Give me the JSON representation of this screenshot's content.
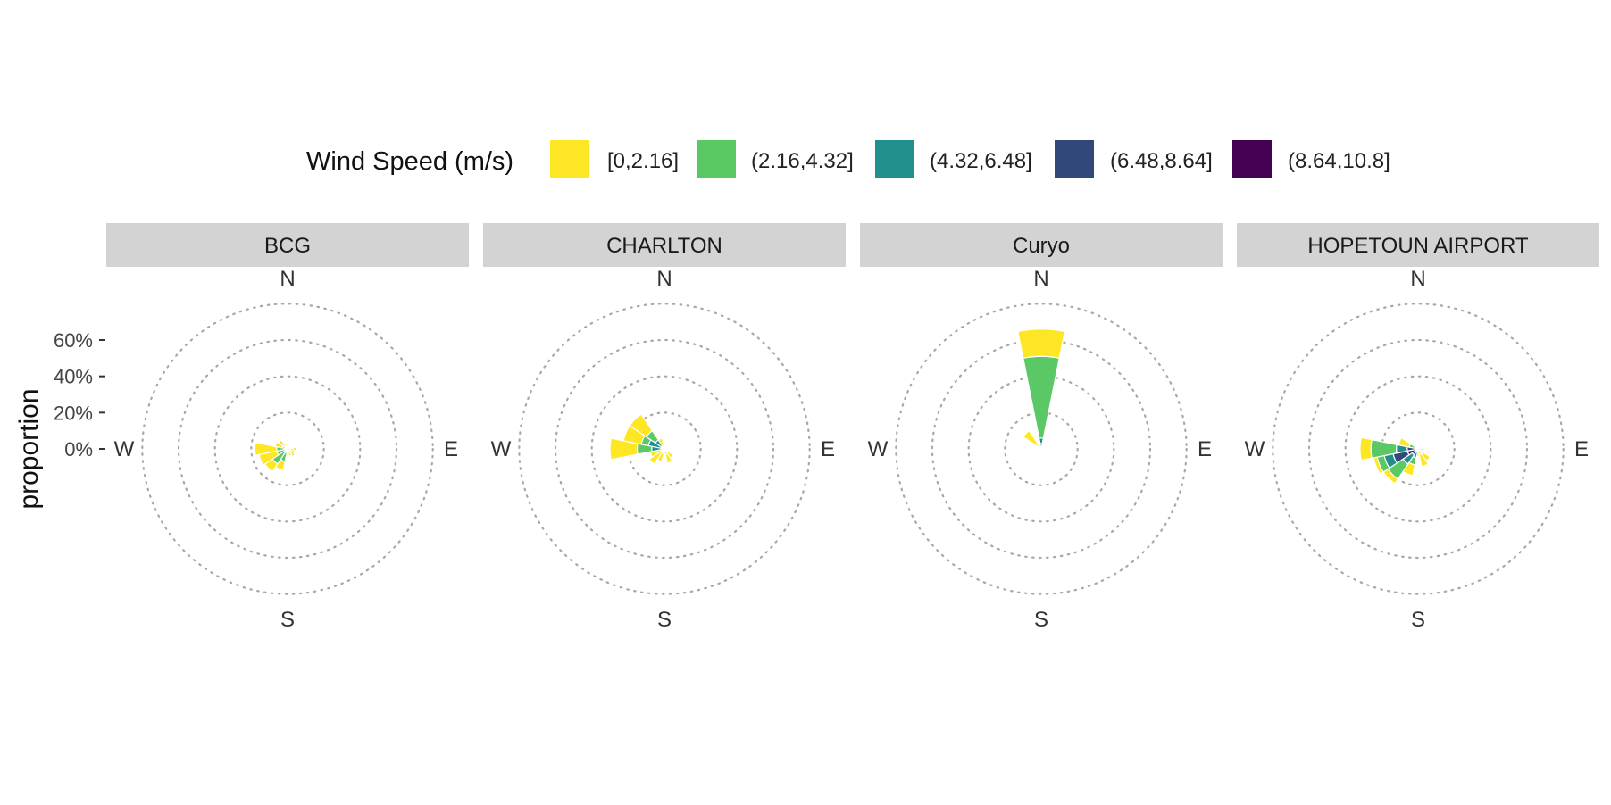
{
  "chart_data": {
    "type": "polar-bar",
    "subtype": "wind-rose",
    "facets": [
      "BCG",
      "CHARLTON",
      "Curyo",
      "HOPETOUN AIRPORT"
    ],
    "ylabel": "proportion",
    "radial_ticks": [
      "0%",
      "20%",
      "40%",
      "60%"
    ],
    "radial_tick_values": [
      0,
      0.2,
      0.4,
      0.6
    ],
    "radial_max": 0.9,
    "compass_labels": [
      "N",
      "E",
      "S",
      "W"
    ],
    "grid": "dotted-circles",
    "legend": {
      "title": "Wind Speed (m/s)",
      "placement": "top",
      "items": [
        {
          "label": "[0,2.16]",
          "color": "#FDE725"
        },
        {
          "label": "(2.16,4.32]",
          "color": "#5AC864"
        },
        {
          "label": "(4.32,6.48]",
          "color": "#21908C"
        },
        {
          "label": "(6.48,8.64]",
          "color": "#31487A"
        },
        {
          "label": "(8.64,10.8]",
          "color": "#440154"
        }
      ]
    },
    "direction_bin_width_deg": 22.5,
    "panels": [
      {
        "name": "BCG",
        "bars": [
          {
            "dir": 90,
            "stacks": [
              0.03,
              0.02
            ]
          },
          {
            "dir": 112.5,
            "stacks": [
              0.04
            ]
          },
          {
            "dir": 135,
            "stacks": [
              0.05
            ]
          },
          {
            "dir": 157.5,
            "stacks": [
              0.04
            ]
          },
          {
            "dir": 202.5,
            "stacks": [
              0.07,
              0.05
            ]
          },
          {
            "dir": 225,
            "stacks": [
              0.1,
              0.05
            ]
          },
          {
            "dir": 247.5,
            "stacks": [
              0.06,
              0.1
            ]
          },
          {
            "dir": 270,
            "stacks": [
              0.06,
              0.12
            ]
          },
          {
            "dir": 292.5,
            "stacks": [
              0.03,
              0.04
            ]
          },
          {
            "dir": 315,
            "stacks": [
              0.02,
              0.04
            ]
          },
          {
            "dir": 337.5,
            "stacks": [
              0.03
            ]
          }
        ]
      },
      {
        "name": "CHARLTON",
        "bars": [
          {
            "dir": 90,
            "stacks": [
              0.02
            ]
          },
          {
            "dir": 112.5,
            "stacks": [
              0.02
            ]
          },
          {
            "dir": 135,
            "stacks": [
              0.02,
              0.04
            ]
          },
          {
            "dir": 157.5,
            "stacks": [
              0.03,
              0.05
            ]
          },
          {
            "dir": 202.5,
            "stacks": [
              0.02,
              0.05
            ]
          },
          {
            "dir": 225,
            "stacks": [
              0.02,
              0.08
            ]
          },
          {
            "dir": 247.5,
            "stacks": [
              0.02,
              0.06
            ]
          },
          {
            "dir": 270,
            "stacks": [
              0.02,
              0.05,
              0.08,
              0.15
            ]
          },
          {
            "dir": 292.5,
            "stacks": [
              0.02,
              0.07,
              0.04,
              0.1
            ]
          },
          {
            "dir": 315,
            "stacks": [
              0.02,
              0.04,
              0.06,
              0.11
            ]
          },
          {
            "dir": 337.5,
            "stacks": [
              0.02,
              0.04
            ]
          }
        ]
      },
      {
        "name": "Curyo",
        "bars": [
          {
            "dir": 0,
            "stacks": [
              0.03,
              0.03,
              0.45,
              0.15
            ]
          },
          {
            "dir": 315,
            "stacks": [
              0.02,
              0.1
            ]
          }
        ]
      },
      {
        "name": "HOPETOUN AIRPORT",
        "bars": [
          {
            "dir": 45,
            "stacks": [
              0.02
            ]
          },
          {
            "dir": 90,
            "stacks": [
              0.03
            ]
          },
          {
            "dir": 135,
            "stacks": [
              0.03,
              0.05
            ]
          },
          {
            "dir": 157.5,
            "stacks": [
              0.03,
              0.07
            ]
          },
          {
            "dir": 180,
            "stacks": [
              0.04
            ]
          },
          {
            "dir": 202.5,
            "stacks": [
              0.05,
              0.04,
              0.06
            ]
          },
          {
            "dir": 225,
            "stacks": [
              0.04,
              0.06,
              0.1,
              0.03
            ]
          },
          {
            "dir": 247.5,
            "stacks": [
              0.06,
              0.08,
              0.05,
              0.04,
              0.02
            ]
          },
          {
            "dir": 270,
            "stacks": [
              0.06,
              0.06,
              0.14,
              0.06
            ]
          },
          {
            "dir": 292.5,
            "stacks": [
              0.02,
              0.03,
              0.06
            ]
          },
          {
            "dir": 337.5,
            "stacks": [
              0.02
            ]
          }
        ]
      }
    ]
  }
}
